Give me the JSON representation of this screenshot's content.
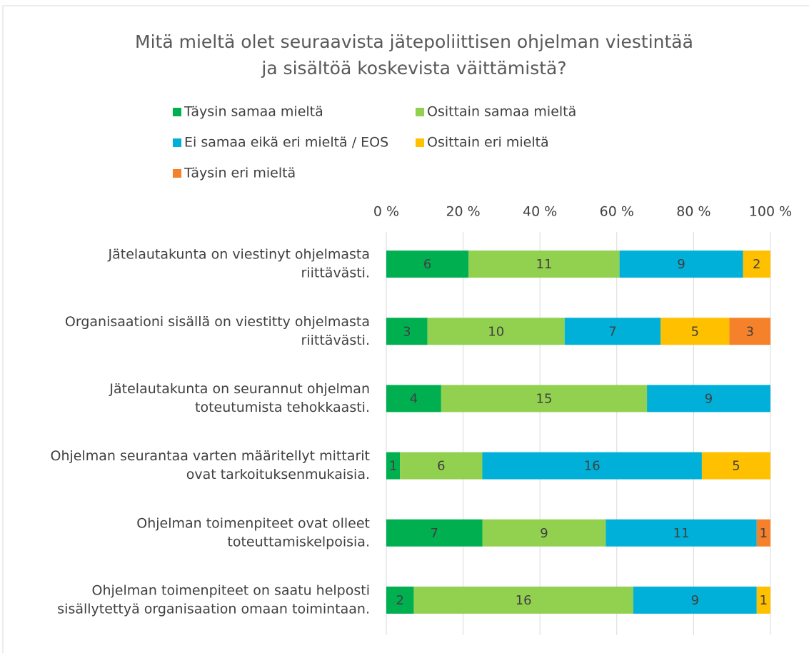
{
  "chart_data": {
    "type": "bar",
    "orientation": "horizontal",
    "stacked": "percent",
    "title": [
      "Mitä mieltä olet seuraavista jätepoliittisen ohjelman viestintää",
      "ja sisältöä koskevista väittämistä?"
    ],
    "categories": [
      [
        "Jätelautakunta on viestinyt ohjelmasta",
        "riittävästi."
      ],
      [
        "Organisaationi sisällä on viestitty ohjelmasta",
        "riittävästi."
      ],
      [
        "Jätelautakunta on seurannut ohjelman",
        "toteutumista tehokkaasti."
      ],
      [
        "Ohjelman seurantaa varten määritellyt mittarit",
        "ovat tarkoituksenmukaisia."
      ],
      [
        "Ohjelman toimenpiteet ovat olleet",
        "toteuttamiskelpoisia."
      ],
      [
        "Ohjelman toimenpiteet on saatu helposti",
        "sisällytettyä organisaation omaan toimintaan."
      ]
    ],
    "series": [
      {
        "name": "Täysin samaa mieltä",
        "color": "#00b050",
        "values": [
          6,
          3,
          4,
          1,
          7,
          2
        ]
      },
      {
        "name": "Osittain samaa mieltä",
        "color": "#92d050",
        "values": [
          11,
          10,
          15,
          6,
          9,
          16
        ]
      },
      {
        "name": "Ei samaa eikä eri mieltä / EOS",
        "color": "#00b0d8",
        "values": [
          9,
          7,
          9,
          16,
          11,
          9
        ]
      },
      {
        "name": "Osittain eri mieltä",
        "color": "#ffc000",
        "values": [
          2,
          5,
          null,
          5,
          null,
          1
        ]
      },
      {
        "name": "Täysin eri mieltä",
        "color": "#f5822a",
        "values": [
          null,
          3,
          null,
          null,
          1,
          null
        ]
      }
    ],
    "xlim": [
      0,
      100
    ],
    "xticks": [
      {
        "value": 0,
        "label": "0 %"
      },
      {
        "value": 20,
        "label": "20 %"
      },
      {
        "value": 40,
        "label": "40 %"
      },
      {
        "value": 60,
        "label": "60 %"
      },
      {
        "value": 80,
        "label": "80 %"
      },
      {
        "value": 100,
        "label": "100 %"
      }
    ],
    "grid": true,
    "legend": "top"
  }
}
